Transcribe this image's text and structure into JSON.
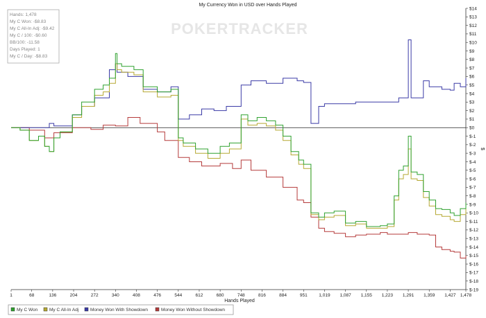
{
  "chart_data": {
    "type": "line",
    "title": "My Currency Won in USD over Hands Played",
    "xlabel": "Hands Played",
    "ylabel": "$",
    "xlim": [
      1,
      1478
    ],
    "ylim": [
      -19,
      14
    ],
    "x_ticks": [
      1,
      68,
      136,
      204,
      272,
      340,
      408,
      476,
      544,
      612,
      680,
      748,
      816,
      884,
      951,
      1019,
      1087,
      1155,
      1223,
      1291,
      1359,
      1427,
      1478
    ],
    "x_tick_labels": [
      "1",
      "68",
      "136",
      "204",
      "272",
      "340",
      "408",
      "476",
      "544",
      "612",
      "680",
      "748",
      "816",
      "884",
      "951",
      "1,019",
      "1,087",
      "1,155",
      "1,223",
      "1,291",
      "1,359",
      "1,427",
      "1,478"
    ],
    "y_ticks": [
      14,
      13,
      12,
      11,
      10,
      9,
      8,
      7,
      6,
      5,
      4,
      3,
      2,
      1,
      0,
      -1,
      -2,
      -3,
      -4,
      -5,
      -6,
      -7,
      -8,
      -9,
      -10,
      -11,
      -12,
      -13,
      -14,
      -15,
      -16,
      -17,
      -18,
      -19
    ],
    "y_tick_labels": [
      "$14",
      "$13",
      "$12",
      "$11",
      "$10",
      "$9",
      "$8",
      "$7",
      "$6",
      "$5",
      "$4",
      "$3",
      "$2",
      "$1",
      "$0",
      "$-1",
      "$-2",
      "$-3",
      "$-4",
      "$-5",
      "$-6",
      "$-7",
      "$-8",
      "$-9",
      "$-10",
      "$-11",
      "$-12",
      "$-13",
      "$-14",
      "$-15",
      "$-16",
      "$-17",
      "$-18",
      "$-19"
    ],
    "grid": false,
    "legend_position": "bottom",
    "watermark": "POKERTRACKER",
    "stats_box": [
      "Hands: 1,478",
      "My C Won: -$8.83",
      "My C All-In Adj: -$9.42",
      "My C / 100: -$0.60",
      "BB/100: -11.58",
      "Days Played: 1",
      "My C / Day: -$8.83"
    ],
    "series": [
      {
        "name": "My C Won",
        "color": "#2ea12e",
        "x": [
          1,
          30,
          60,
          90,
          110,
          125,
          140,
          160,
          200,
          230,
          272,
          300,
          320,
          340,
          345,
          360,
          400,
          430,
          476,
          520,
          544,
          560,
          600,
          640,
          680,
          710,
          748,
          770,
          800,
          830,
          860,
          884,
          910,
          935,
          951,
          975,
          1000,
          1019,
          1050,
          1087,
          1120,
          1155,
          1200,
          1223,
          1245,
          1260,
          1275,
          1291,
          1300,
          1320,
          1340,
          1359,
          1380,
          1400,
          1427,
          1440,
          1460,
          1478
        ],
        "y": [
          0,
          -0.3,
          -1.5,
          -1,
          -2.2,
          -2.8,
          -1.2,
          -0.5,
          1.5,
          3,
          4.5,
          5,
          5.8,
          8.7,
          7.5,
          7.2,
          6.8,
          4.8,
          4.2,
          4.5,
          -1.2,
          -1.8,
          -2.5,
          -3,
          -2.2,
          -1.8,
          1.5,
          0.8,
          1.2,
          0.8,
          0.3,
          -1,
          -2.8,
          -3.8,
          -4.3,
          -10,
          -10.5,
          -10,
          -9.8,
          -11.2,
          -11,
          -11.6,
          -11.5,
          -11.3,
          -8,
          -5,
          -4.5,
          -1,
          -5.2,
          -5.5,
          -7.5,
          -8.5,
          -9.5,
          -9.6,
          -10,
          -10.3,
          -9.5,
          -8.8
        ]
      },
      {
        "name": "My C All-In Adj",
        "color": "#b5a832",
        "x": [
          1,
          30,
          60,
          90,
          110,
          125,
          140,
          160,
          200,
          230,
          272,
          300,
          320,
          340,
          345,
          360,
          400,
          430,
          476,
          520,
          544,
          560,
          600,
          640,
          680,
          710,
          748,
          770,
          800,
          830,
          860,
          884,
          910,
          935,
          951,
          975,
          1000,
          1019,
          1050,
          1087,
          1120,
          1155,
          1200,
          1223,
          1245,
          1260,
          1275,
          1291,
          1300,
          1320,
          1340,
          1359,
          1380,
          1400,
          1427,
          1440,
          1460,
          1478
        ],
        "y": [
          0,
          -0.3,
          -1.5,
          -1,
          -2.2,
          -2.8,
          -1.2,
          -0.5,
          1.2,
          2.5,
          3.8,
          4.2,
          5.2,
          7.5,
          6.8,
          6.5,
          6.2,
          4.2,
          3.6,
          3.8,
          -1.5,
          -2.2,
          -3,
          -3.6,
          -3,
          -2.5,
          1,
          0.3,
          0.5,
          0.2,
          -0.3,
          -1.5,
          -3.2,
          -4.3,
          -4.8,
          -10.2,
          -10.8,
          -10.5,
          -10.3,
          -11.5,
          -11.3,
          -11.8,
          -11.8,
          -11.6,
          -8.5,
          -6,
          -5.5,
          -2.5,
          -6,
          -6.2,
          -8.2,
          -9.2,
          -10.2,
          -10.4,
          -10.8,
          -11,
          -10.2,
          -9.4
        ]
      },
      {
        "name": "Money Won With Showdown",
        "color": "#3a3aa6",
        "x": [
          1,
          60,
          110,
          125,
          140,
          200,
          230,
          272,
          320,
          340,
          345,
          380,
          430,
          476,
          520,
          544,
          580,
          620,
          660,
          700,
          748,
          780,
          830,
          884,
          930,
          951,
          975,
          1000,
          1019,
          1087,
          1120,
          1155,
          1223,
          1260,
          1291,
          1300,
          1340,
          1359,
          1400,
          1427,
          1440,
          1460,
          1478
        ],
        "y": [
          0,
          0,
          0,
          0.5,
          0.2,
          1.5,
          2.5,
          3.5,
          6.8,
          7.5,
          6.5,
          6,
          4.5,
          4.2,
          4.8,
          1,
          1.5,
          2.2,
          2,
          2.5,
          5,
          5.5,
          5.2,
          5.8,
          5.5,
          5.3,
          0.5,
          2.5,
          2.8,
          2.8,
          3,
          3,
          3,
          3.5,
          10.3,
          3.5,
          5.5,
          4.8,
          4.5,
          4.4,
          5.2,
          4.8,
          5.8
        ]
      },
      {
        "name": "Money Won Without Showdown",
        "color": "#b53a3a",
        "x": [
          1,
          60,
          110,
          140,
          200,
          260,
          300,
          340,
          380,
          420,
          476,
          500,
          544,
          580,
          620,
          680,
          720,
          748,
          780,
          830,
          884,
          930,
          951,
          975,
          1000,
          1019,
          1050,
          1087,
          1120,
          1155,
          1200,
          1223,
          1260,
          1291,
          1320,
          1359,
          1380,
          1400,
          1427,
          1440,
          1460,
          1478
        ],
        "y": [
          0,
          -0.3,
          -1.2,
          -0.6,
          0,
          -0.2,
          0.3,
          0.2,
          1.2,
          0.5,
          -0.5,
          -1.5,
          -3.5,
          -4,
          -4.5,
          -4.2,
          -4.8,
          -3.8,
          -5,
          -5.8,
          -7,
          -8.5,
          -8.8,
          -10.5,
          -11.8,
          -12.2,
          -12.4,
          -12.8,
          -12.6,
          -12.5,
          -12.3,
          -12.5,
          -12.5,
          -12.3,
          -12.5,
          -12.6,
          -14,
          -14.3,
          -14.5,
          -14.6,
          -15.3,
          -15
        ]
      }
    ]
  }
}
